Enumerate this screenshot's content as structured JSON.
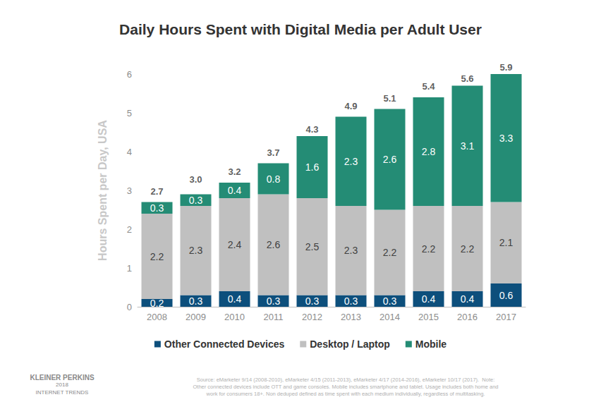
{
  "chart_data": {
    "type": "bar",
    "title": "Daily Hours Spent with Digital Media per Adult User",
    "y_label": "Hours Spent per Day, USA",
    "categories": [
      "2008",
      "2009",
      "2010",
      "2011",
      "2012",
      "2013",
      "2014",
      "2015",
      "2016",
      "2017"
    ],
    "series": [
      {
        "name": "Other Connected Devices",
        "color": "#0d4f7c",
        "values": [
          0.2,
          0.3,
          0.4,
          0.3,
          0.3,
          0.3,
          0.3,
          0.4,
          0.4,
          0.6
        ]
      },
      {
        "name": "Desktop / Laptop",
        "color": "#c0c0c0",
        "values": [
          2.2,
          2.3,
          2.4,
          2.6,
          2.5,
          2.3,
          2.2,
          2.2,
          2.2,
          2.1
        ]
      },
      {
        "name": "Mobile",
        "color": "#248c75",
        "values": [
          0.3,
          0.3,
          0.4,
          0.8,
          1.6,
          2.3,
          2.6,
          2.8,
          3.1,
          3.3
        ]
      }
    ],
    "totals": [
      2.7,
      3.0,
      3.2,
      3.7,
      4.3,
      4.9,
      5.1,
      5.4,
      5.6,
      5.9
    ],
    "total_labels": [
      "2.7",
      "3.0",
      "3.2",
      "3.7",
      "4.3",
      "4.9",
      "5.1",
      "5.4",
      "5.6",
      "5.9"
    ],
    "ylim": [
      0,
      6
    ],
    "yticks": [
      0,
      1,
      2,
      3,
      4,
      5,
      6
    ],
    "stacked": true,
    "data_labels": true,
    "grid": false,
    "legend": "bottom",
    "source": [
      "Source: eMarketer 9/14 (2008-2010), eMarketer 4/15 (2011-2013), eMarketer 4/17 (2014-2016), eMarketer 10/17 (2017).  Note:",
      "Other connected devices include OTT and game consoles. Mobile includes smartphone and tablet. Usage includes both home and",
      "work for consumers 18+. Non deduped defined as time spent with each medium individually, regardless of multitasking."
    ],
    "logo": [
      "KLEINER PERKINS",
      "2018",
      "INTERNET TRENDS"
    ]
  }
}
